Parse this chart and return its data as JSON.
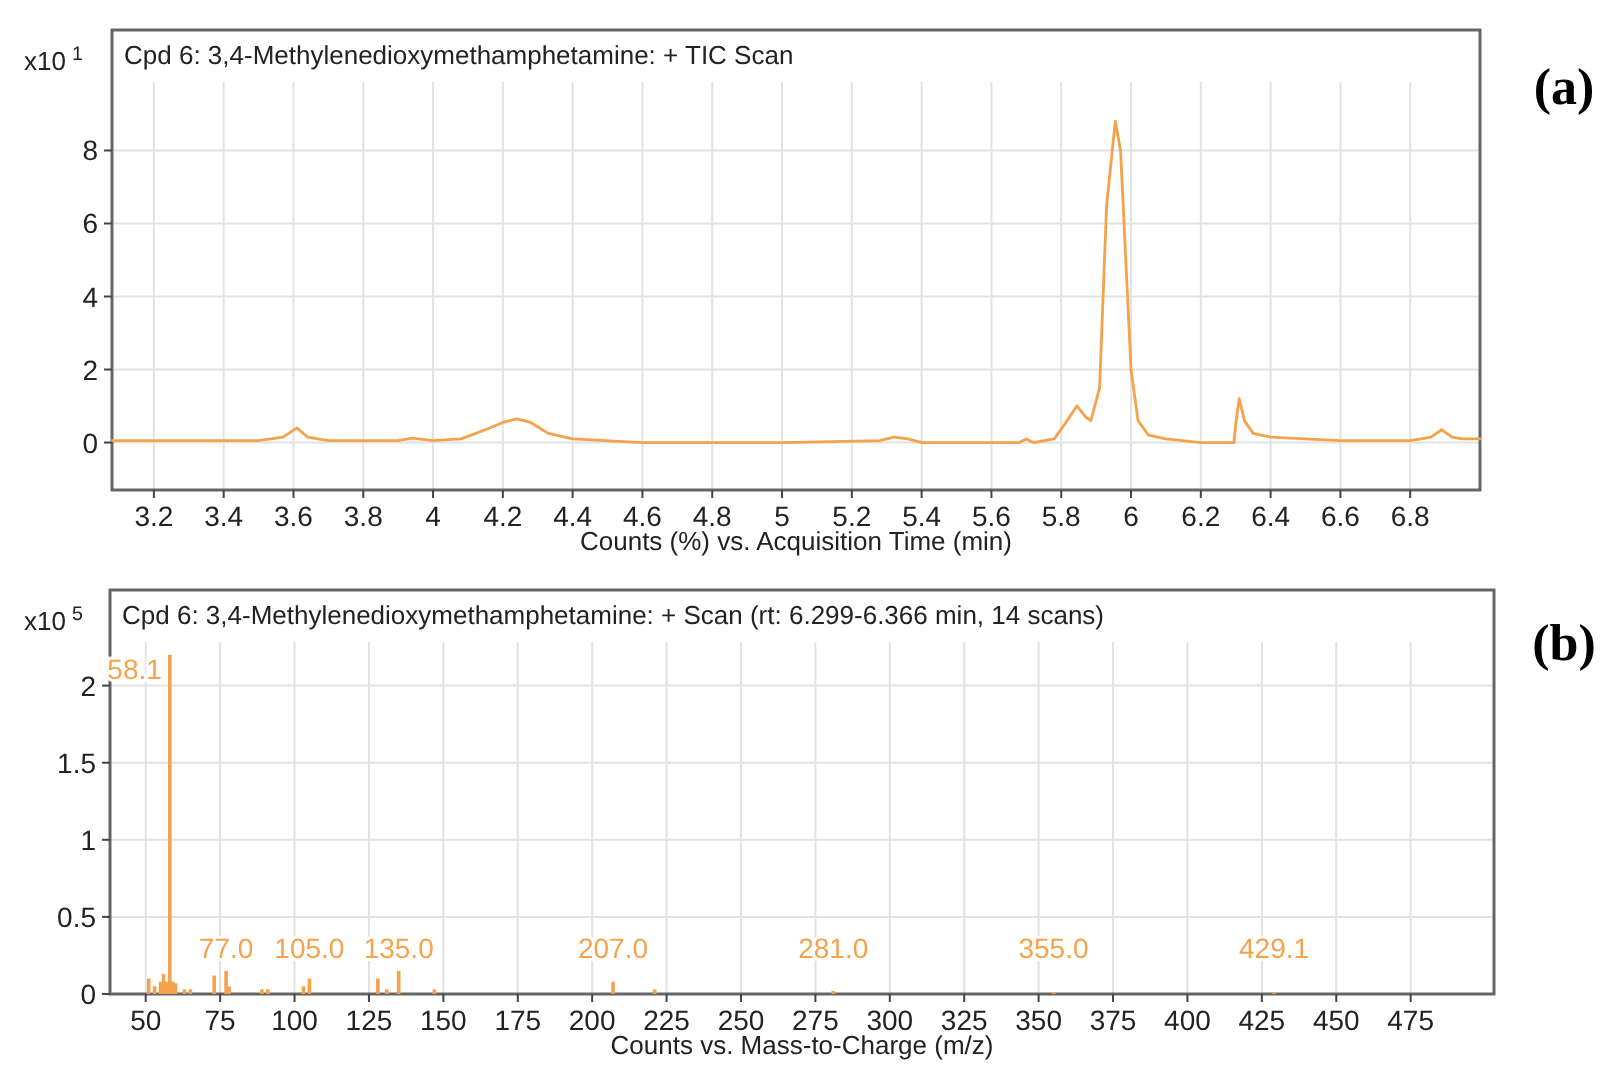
{
  "chart_data": [
    {
      "type": "line",
      "title": "Cpd 6: 3,4-Methylenedioxymethamphetamine: + TIC Scan",
      "xlabel": "Counts (%) vs. Acquisition Time (min)",
      "ylabel": "x10$^{1}$",
      "annotations": [
        "(a)"
      ],
      "xlim": [
        3.08,
        7.0
      ],
      "ylim": [
        -1.3,
        11.3
      ],
      "xticks": [
        {
          "value": 3.2,
          "label": "3.2"
        },
        {
          "value": 3.4,
          "label": "3.4"
        },
        {
          "value": 3.6,
          "label": "3.6"
        },
        {
          "value": 3.8,
          "label": "3.8"
        },
        4,
        {
          "value": 4.2,
          "label": "4.2"
        },
        {
          "value": 4.4,
          "label": "4.4"
        },
        {
          "value": 4.6,
          "label": "4.6"
        },
        {
          "value": 4.8,
          "label": "4.8"
        },
        5,
        {
          "value": 5.2,
          "label": "5.2"
        },
        {
          "value": 5.4,
          "label": "5.4"
        },
        {
          "value": 5.6,
          "label": "5.6"
        },
        {
          "value": 5.8,
          "label": "5.8"
        },
        6,
        {
          "value": 6.2,
          "label": "6.2"
        },
        {
          "value": 6.4,
          "label": "6.4"
        },
        {
          "value": 6.6,
          "label": "6.6"
        },
        {
          "value": 6.8,
          "label": "6.8"
        }
      ],
      "yticks": [
        0,
        2,
        4,
        6,
        8
      ],
      "grid": true,
      "series": [
        {
          "color": "#f5a24c",
          "x": [
            3.08,
            3.5,
            3.57,
            3.61,
            3.64,
            3.7,
            3.9,
            3.94,
            4.0,
            4.08,
            4.15,
            4.2,
            4.24,
            4.28,
            4.33,
            4.4,
            4.6,
            5.0,
            5.28,
            5.32,
            5.36,
            5.4,
            5.68,
            5.7,
            5.72,
            5.78,
            5.81,
            5.845,
            5.87,
            5.885,
            5.91,
            5.93,
            5.955,
            5.97,
            5.985,
            6.0,
            6.02,
            6.05,
            6.1,
            6.2,
            6.295,
            6.3,
            6.31,
            6.325,
            6.35,
            6.4,
            6.5,
            6.6,
            6.8,
            6.86,
            6.89,
            6.92,
            6.95,
            7.0
          ],
          "values": [
            0.05,
            0.05,
            0.15,
            0.4,
            0.15,
            0.05,
            0.05,
            0.12,
            0.05,
            0.1,
            0.35,
            0.55,
            0.65,
            0.55,
            0.25,
            0.1,
            0,
            0,
            0.05,
            0.15,
            0.1,
            0,
            0,
            0.1,
            0,
            0.1,
            0.5,
            1.0,
            0.7,
            0.6,
            1.5,
            6.5,
            8.8,
            8.0,
            5.0,
            2.0,
            0.6,
            0.2,
            0.1,
            0,
            0,
            0.5,
            1.2,
            0.6,
            0.25,
            0.15,
            0.1,
            0.05,
            0.05,
            0.15,
            0.35,
            0.15,
            0.1,
            0.1
          ]
        }
      ]
    },
    {
      "type": "bar",
      "title": "Cpd 6: 3,4-Methylenedioxymethamphetamine: + Scan (rt: 6.299-6.366 min, 14 scans)",
      "xlabel": "Counts vs. Mass-to-Charge (m/z)",
      "ylabel": "x10$^{5}$",
      "annotations": [
        "(b)",
        {
          "text": "58.1",
          "x": 58.1,
          "y": 2.2
        },
        {
          "text": "77.0",
          "x": 77,
          "y": 0.15
        },
        {
          "text": "105.0",
          "x": 105,
          "y": 0.1
        },
        {
          "text": "135.0",
          "x": 135,
          "y": 0.15
        },
        {
          "text": "207.0",
          "x": 207,
          "y": 0.08
        },
        {
          "text": "281.0",
          "x": 281,
          "y": 0.02
        },
        {
          "text": "355.0",
          "x": 355,
          "y": 0.01
        },
        {
          "text": "429.1",
          "x": 429.1,
          "y": 0.01
        }
      ],
      "xlim": [
        38,
        503
      ],
      "ylim": [
        0,
        2.62
      ],
      "xticks": [
        50,
        75,
        100,
        125,
        150,
        175,
        200,
        225,
        250,
        275,
        300,
        325,
        350,
        375,
        400,
        425,
        450,
        475
      ],
      "yticks": [
        0,
        0.5,
        1,
        1.5,
        2
      ],
      "grid": true,
      "series": [
        {
          "color": "#f5a24c",
          "x": [
            51,
            53,
            55,
            56,
            57,
            58.1,
            59,
            60,
            63,
            65,
            73,
            77,
            78,
            89,
            91,
            103,
            105,
            128,
            131,
            135,
            147,
            207,
            221,
            281,
            355,
            429.1
          ],
          "values": [
            0.1,
            0.05,
            0.08,
            0.13,
            0.08,
            2.2,
            0.08,
            0.07,
            0.03,
            0.03,
            0.12,
            0.15,
            0.05,
            0.03,
            0.03,
            0.05,
            0.1,
            0.1,
            0.03,
            0.15,
            0.03,
            0.08,
            0.03,
            0.02,
            0.01,
            0.01
          ]
        }
      ]
    }
  ]
}
